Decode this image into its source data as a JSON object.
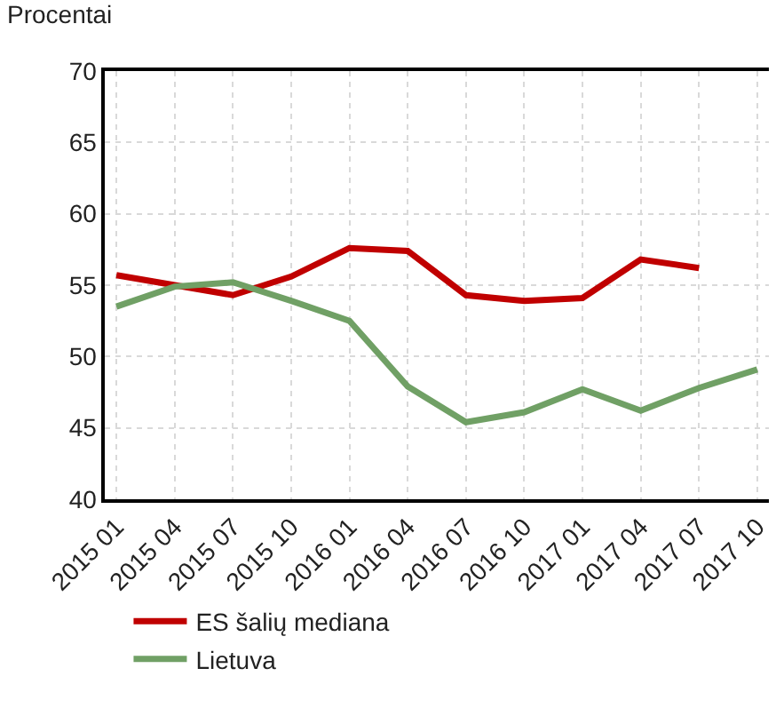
{
  "chart_data": {
    "type": "line",
    "ylabel": "Procentai",
    "categories": [
      "2015 01",
      "2015 04",
      "2015 07",
      "2015 10",
      "2016 01",
      "2016 04",
      "2016 07",
      "2016 10",
      "2017 01",
      "2017 04",
      "2017 07",
      "2017 10"
    ],
    "series": [
      {
        "name": "ES šalių mediana",
        "color": "#c00000",
        "values": [
          55.7,
          55.0,
          54.3,
          55.6,
          57.6,
          57.4,
          54.3,
          53.9,
          54.1,
          56.8,
          56.2,
          null
        ]
      },
      {
        "name": "Lietuva",
        "color": "#70a065",
        "values": [
          53.5,
          54.9,
          55.2,
          53.9,
          52.5,
          47.9,
          45.4,
          46.1,
          47.7,
          46.2,
          47.8,
          49.1
        ]
      }
    ],
    "ylim": [
      40,
      70
    ],
    "yticks": [
      40,
      45,
      50,
      55,
      60,
      65,
      70
    ],
    "grid": true,
    "legend": "bottom left",
    "marker": "none",
    "line_style": "solid"
  }
}
